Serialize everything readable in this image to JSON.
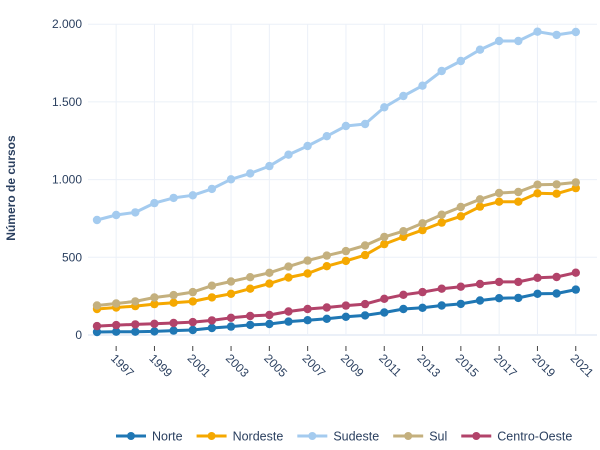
{
  "chart_data": {
    "type": "line",
    "title": "",
    "xlabel": "",
    "ylabel": "Número de cursos",
    "x": [
      1996,
      1997,
      1998,
      1999,
      2000,
      2001,
      2002,
      2003,
      2004,
      2005,
      2006,
      2007,
      2008,
      2009,
      2010,
      2011,
      2012,
      2013,
      2014,
      2015,
      2016,
      2017,
      2018,
      2019,
      2020,
      2021
    ],
    "xticks": [
      1997,
      1999,
      2001,
      2003,
      2005,
      2007,
      2009,
      2011,
      2013,
      2015,
      2017,
      2019,
      2021
    ],
    "xtick_labels": [
      "1997",
      "1999",
      "2001",
      "2003",
      "2005",
      "2007",
      "2009",
      "2011",
      "2013",
      "2015",
      "2017",
      "2019",
      "2021"
    ],
    "yticks": [
      0,
      500,
      1000,
      1500,
      2000
    ],
    "ytick_labels": [
      "0",
      "500",
      "1.000",
      "1.500",
      "2.000"
    ],
    "xlim": [
      1995.0,
      2021.5
    ],
    "ylim": [
      -10,
      2060
    ],
    "grid": true,
    "legend_position": "bottom-center",
    "series": [
      {
        "name": "Norte",
        "color": "#1f77b4",
        "values": [
          19,
          21,
          21,
          23,
          28,
          32,
          45,
          54,
          65,
          71,
          86,
          95,
          104,
          117,
          126,
          145,
          167,
          175,
          190,
          200,
          222,
          237,
          239,
          265,
          267,
          292
        ]
      },
      {
        "name": "Nordeste",
        "color": "#f5a800",
        "values": [
          167,
          177,
          186,
          199,
          208,
          216,
          242,
          265,
          298,
          331,
          370,
          396,
          443,
          477,
          514,
          585,
          631,
          675,
          723,
          764,
          826,
          858,
          858,
          912,
          909,
          945
        ]
      },
      {
        "name": "Sudeste",
        "color": "#a4cbef",
        "values": [
          740,
          772,
          789,
          849,
          882,
          899,
          940,
          1002,
          1040,
          1087,
          1160,
          1216,
          1279,
          1345,
          1358,
          1465,
          1538,
          1604,
          1699,
          1763,
          1836,
          1892,
          1892,
          1952,
          1931,
          1950
        ]
      },
      {
        "name": "Sul",
        "color": "#c4b07e",
        "values": [
          190,
          203,
          216,
          241,
          257,
          276,
          317,
          344,
          372,
          400,
          440,
          479,
          511,
          540,
          576,
          631,
          668,
          719,
          774,
          824,
          873,
          914,
          920,
          967,
          969,
          982
        ]
      },
      {
        "name": "Centro-Oeste",
        "color": "#b2436a",
        "values": [
          57,
          64,
          68,
          72,
          77,
          83,
          94,
          111,
          122,
          129,
          151,
          167,
          177,
          189,
          199,
          233,
          259,
          276,
          298,
          311,
          328,
          342,
          342,
          368,
          373,
          401
        ]
      }
    ]
  }
}
